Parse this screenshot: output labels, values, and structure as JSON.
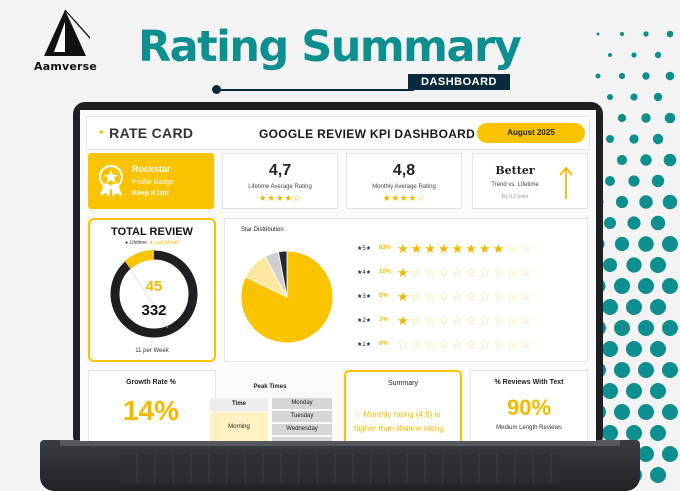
{
  "brand": {
    "name": "Aamverse"
  },
  "hero": {
    "title": "Rating Summary",
    "subtitle": "DASHBOARD"
  },
  "dashboard": {
    "logo_text": "RATE CARD",
    "title": "GOOGLE REVIEW KPI DASHBOARD",
    "date": "August 2025"
  },
  "badge": {
    "name": "Rockstar",
    "role": "Profile Badge",
    "message": "Keep it Up!"
  },
  "stats": [
    {
      "value": "4,7",
      "label": "Lifetime Average Rating",
      "stars": "★★★★☆"
    },
    {
      "value": "4,8",
      "label": "Monthly Average Rating",
      "stars": "★★★★☆"
    }
  ],
  "trend": {
    "value": "Better",
    "label": "Trend vs. Lifetime",
    "note": "By 0,1 point"
  },
  "total_review": {
    "title": "TOTAL REVIEW",
    "legend_lifetime": "Lifetime",
    "legend_last_month": "Last Month",
    "last_month": "45",
    "lifetime": "332",
    "per_week": "11 per Week"
  },
  "distribution": {
    "title": "Star Distribution",
    "rows": [
      {
        "level": "5",
        "star": "★",
        "pct": "83%",
        "filled": "★★★★★★★★",
        "empty": "☆☆"
      },
      {
        "level": "4",
        "star": "★",
        "pct": "10%",
        "filled": "★",
        "empty": "☆☆☆☆☆☆☆☆☆"
      },
      {
        "level": "3",
        "star": "★",
        "pct": "5%",
        "filled": "★",
        "empty": "☆☆☆☆☆☆☆☆☆"
      },
      {
        "level": "2",
        "star": "★",
        "pct": "3%",
        "filled": "★",
        "empty": "☆☆☆☆☆☆☆☆☆"
      },
      {
        "level": "1",
        "star": "★",
        "pct": "0%",
        "filled": "",
        "empty": "☆☆☆☆☆☆☆☆☆☆"
      }
    ]
  },
  "chart_data": {
    "type": "pie",
    "title": "Star Distribution",
    "categories": [
      "5",
      "4",
      "3",
      "2",
      "1"
    ],
    "values": [
      83,
      10,
      5,
      3,
      0
    ],
    "colors": [
      "#f9c300",
      "#fbe7a0",
      "#cfcfcf",
      "#1f2a36",
      "#e8e8e8"
    ]
  },
  "growth": {
    "title": "Growth Rate %",
    "value": "14%"
  },
  "peak": {
    "title": "Peak Times",
    "time_header": "Time",
    "time_value": "Morning",
    "days": [
      "Monday",
      "Tuesday",
      "Wednesday",
      ""
    ]
  },
  "summary": {
    "title": "Summary",
    "text": "Monthly rating (4,8) is higher than lifetime rating"
  },
  "reviews_text": {
    "title": "% Reviews With Text",
    "value": "90%",
    "sub": "Medium Length Reviews"
  },
  "colors": {
    "accent": "#f9c300",
    "teal": "#0e8f8f",
    "navy": "#0a2a3b"
  }
}
